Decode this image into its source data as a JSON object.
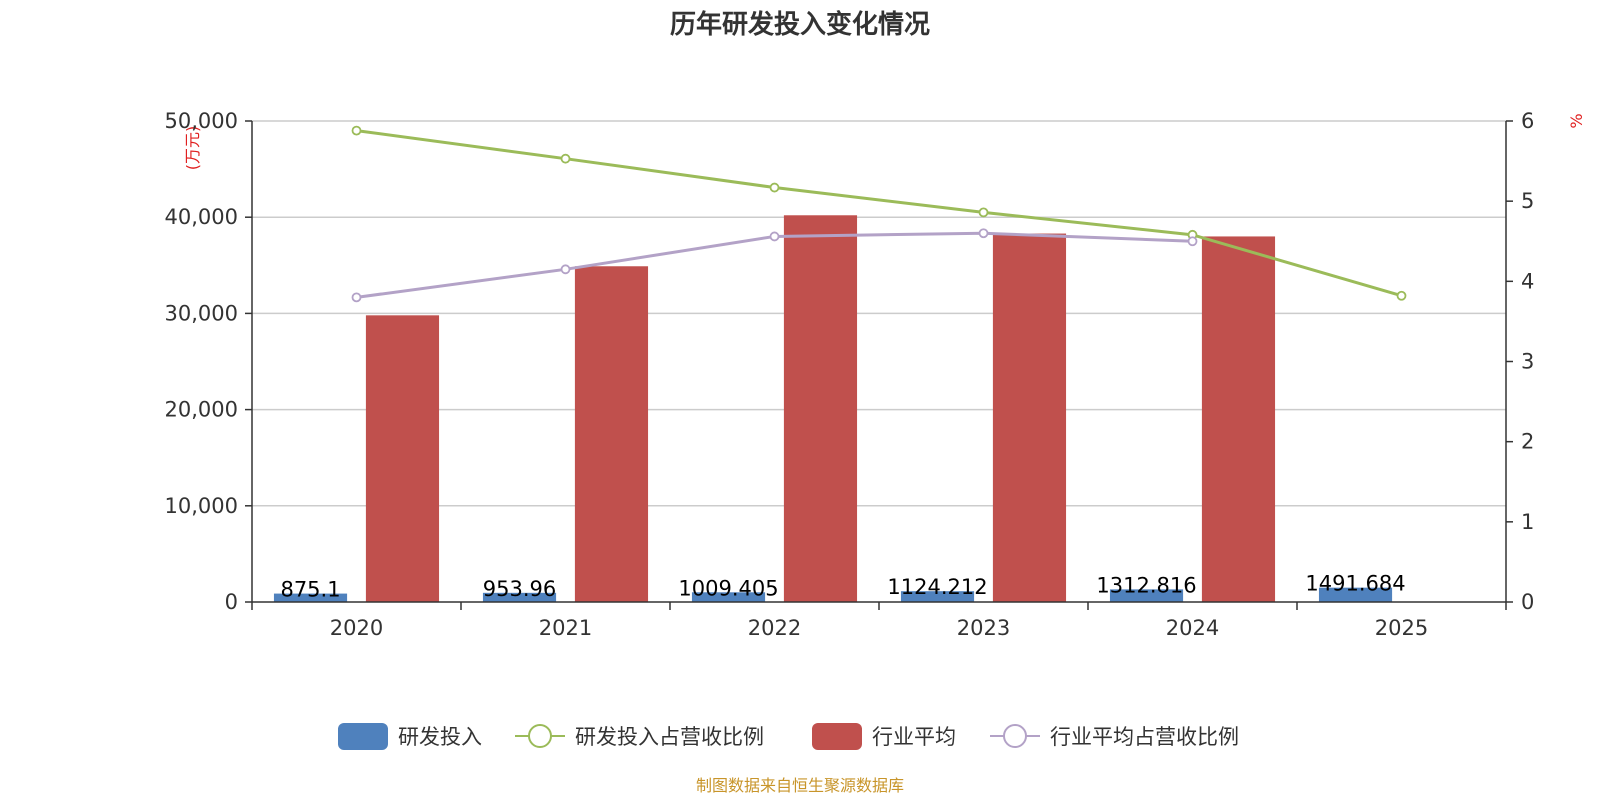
{
  "chart_data": {
    "type": "bar",
    "title": "历年研发投入变化情况",
    "categories": [
      "2020",
      "2021",
      "2022",
      "2023",
      "2024",
      "2025"
    ],
    "y_left": {
      "unit": "(万元)",
      "ylim": [
        0,
        50000
      ],
      "ticks": [
        0,
        10000,
        20000,
        30000,
        40000,
        50000
      ],
      "tick_labels": [
        "0",
        "10,000",
        "20,000",
        "30,000",
        "40,000",
        "50,000"
      ]
    },
    "y_right": {
      "unit": "%",
      "ylim": [
        0,
        6
      ],
      "ticks": [
        0,
        1,
        2,
        3,
        4,
        5,
        6
      ],
      "tick_labels": [
        "0",
        "1",
        "2",
        "3",
        "4",
        "5",
        "6"
      ]
    },
    "grid": true,
    "legend_position": "bottom",
    "series": [
      {
        "name": "研发投入",
        "type": "bar",
        "axis": "left",
        "color": "#4f81bd",
        "values": [
          875.1,
          953.96,
          1009.405,
          1124.212,
          1312.816,
          1491.684
        ],
        "labels": [
          "875.1",
          "953.96",
          "1009.405",
          "1124.212",
          "1312.816",
          "1491.684"
        ]
      },
      {
        "name": "研发投入占营收比例",
        "type": "line",
        "axis": "right",
        "color": "#9bbb59",
        "values": [
          5.88,
          5.53,
          5.17,
          4.86,
          4.58,
          3.82
        ]
      },
      {
        "name": "行业平均",
        "type": "bar",
        "axis": "left",
        "color": "#c0504d",
        "values": [
          29800,
          34900,
          40200,
          38300,
          38000,
          null
        ]
      },
      {
        "name": "行业平均占营收比例",
        "type": "line",
        "axis": "right",
        "color": "#b3a2c7",
        "values": [
          3.8,
          4.15,
          4.56,
          4.6,
          4.5,
          null
        ]
      }
    ],
    "source": "制图数据来自恒生聚源数据库"
  },
  "colors": {
    "axis": "#333333",
    "grid": "#cccccc",
    "unit": "#e02020",
    "source": "#c8952a"
  }
}
